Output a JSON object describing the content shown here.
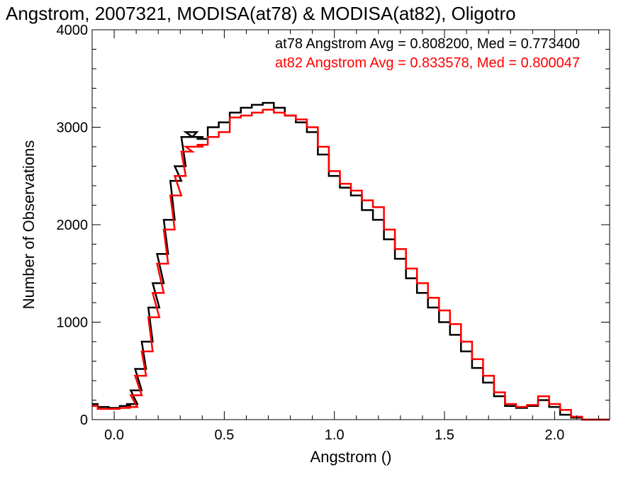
{
  "chart_data": {
    "type": "line",
    "title": "Angstrom, 2007321, MODISA(at78) & MODISA(at82), Oligotro",
    "xlabel": "Angstrom ()",
    "ylabel": "Number of Observations",
    "xlim": [
      -0.1,
      2.25
    ],
    "ylim": [
      0,
      4000
    ],
    "x_ticks": [
      0.0,
      0.5,
      1.0,
      1.5,
      2.0
    ],
    "x_tick_labels": [
      "0.0",
      "0.5",
      "1.0",
      "1.5",
      "2.0"
    ],
    "y_ticks": [
      0,
      1000,
      2000,
      3000,
      4000
    ],
    "y_tick_labels": [
      "0",
      "1000",
      "2000",
      "3000",
      "4000"
    ],
    "step_style": "histogram",
    "grid": false,
    "annotations": [
      {
        "text": "at78 Angstrom Avg = 0.808200, Med = 0.773400",
        "color": "#000000"
      },
      {
        "text": "at82 Angstrom Avg = 0.833578, Med = 0.800047",
        "color": "#ff0000"
      }
    ],
    "series": [
      {
        "color": "#000000",
        "x": [
          -0.1,
          -0.05,
          0.0,
          0.05,
          0.08,
          0.1,
          0.12,
          0.15,
          0.18,
          0.2,
          0.22,
          0.25,
          0.28,
          0.3,
          0.33,
          0.35,
          0.38,
          0.4,
          0.45,
          0.5,
          0.55,
          0.6,
          0.65,
          0.7,
          0.75,
          0.8,
          0.85,
          0.9,
          0.95,
          1.0,
          1.05,
          1.1,
          1.15,
          1.2,
          1.25,
          1.3,
          1.35,
          1.4,
          1.45,
          1.5,
          1.55,
          1.6,
          1.65,
          1.7,
          1.75,
          1.8,
          1.85,
          1.9,
          1.95,
          2.0,
          2.05,
          2.1,
          2.15,
          2.2,
          2.25
        ],
        "values": [
          160,
          130,
          120,
          140,
          160,
          300,
          520,
          800,
          1150,
          1400,
          1700,
          2050,
          2450,
          2600,
          2900,
          2950,
          2900,
          2880,
          3000,
          3050,
          3150,
          3200,
          3230,
          3250,
          3200,
          3120,
          3050,
          2950,
          2720,
          2500,
          2380,
          2300,
          2150,
          2050,
          1850,
          1650,
          1450,
          1300,
          1150,
          1000,
          870,
          700,
          530,
          380,
          240,
          140,
          120,
          140,
          200,
          130,
          50,
          20,
          0,
          0,
          0
        ]
      },
      {
        "color": "#ff0000",
        "x": [
          -0.1,
          -0.05,
          0.0,
          0.05,
          0.08,
          0.1,
          0.12,
          0.15,
          0.18,
          0.2,
          0.22,
          0.25,
          0.28,
          0.3,
          0.33,
          0.35,
          0.38,
          0.4,
          0.45,
          0.5,
          0.55,
          0.6,
          0.65,
          0.7,
          0.75,
          0.8,
          0.85,
          0.9,
          0.95,
          1.0,
          1.05,
          1.1,
          1.15,
          1.2,
          1.25,
          1.3,
          1.35,
          1.4,
          1.45,
          1.5,
          1.55,
          1.6,
          1.65,
          1.7,
          1.75,
          1.8,
          1.85,
          1.9,
          1.95,
          2.0,
          2.05,
          2.1,
          2.15,
          2.2,
          2.25
        ],
        "values": [
          140,
          110,
          110,
          120,
          130,
          250,
          450,
          700,
          1050,
          1300,
          1600,
          1950,
          2300,
          2500,
          2750,
          2800,
          2800,
          2820,
          2900,
          2950,
          3100,
          3120,
          3150,
          3180,
          3150,
          3120,
          3080,
          3000,
          2800,
          2550,
          2420,
          2350,
          2250,
          2180,
          1950,
          1750,
          1550,
          1400,
          1250,
          1120,
          980,
          800,
          620,
          450,
          280,
          160,
          130,
          150,
          240,
          160,
          100,
          30,
          0,
          0,
          0
        ]
      }
    ]
  }
}
